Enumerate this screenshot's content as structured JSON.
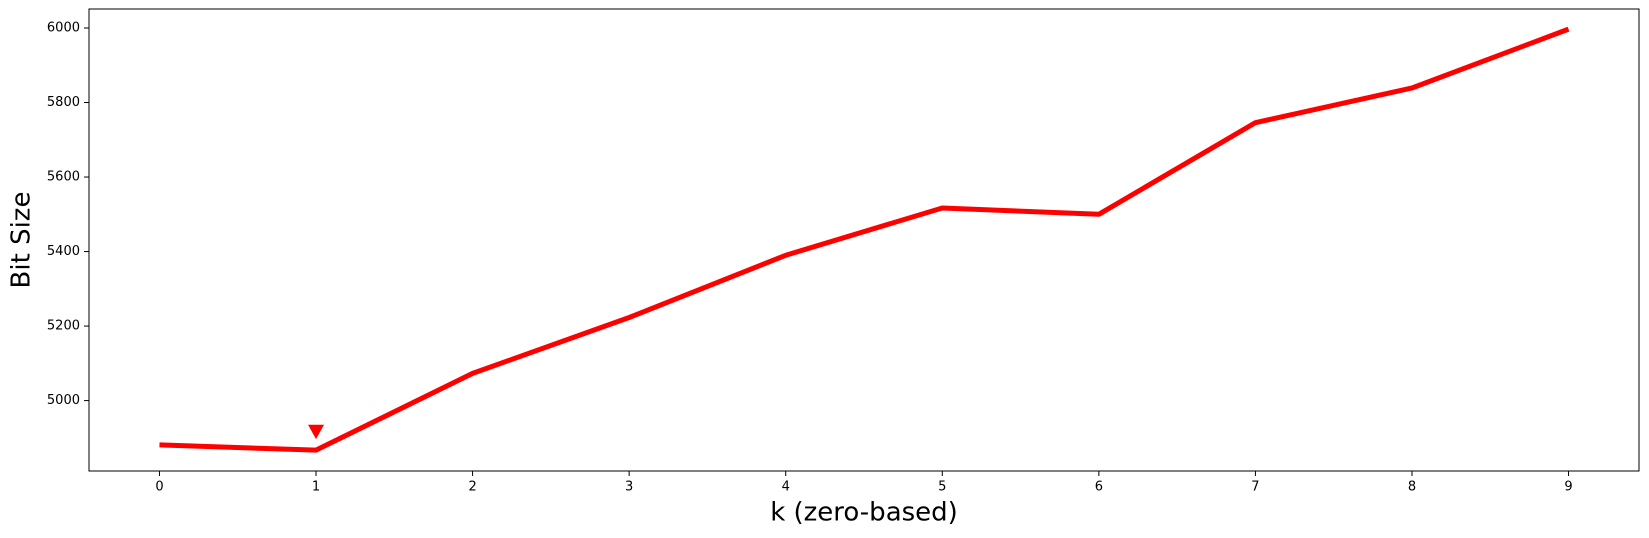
{
  "chart_data": {
    "type": "line",
    "x_label": "k (zero-based)",
    "y_label": "Bit Size",
    "x": [
      0,
      1,
      2,
      3,
      4,
      5,
      6,
      7,
      8,
      9
    ],
    "series": [
      {
        "color": "#ff0000",
        "values": [
          4881,
          4867,
          5073,
          5223,
          5390,
          5517,
          5500,
          5746,
          5839,
          5997
        ]
      }
    ],
    "marker": {
      "x": 1,
      "y": 4918,
      "color": "#ff0000",
      "shape": "triangle-down"
    },
    "xlim": [
      -0.45,
      9.45
    ],
    "ylim": [
      4811,
      6051
    ],
    "xticks": [
      0,
      1,
      2,
      3,
      4,
      5,
      6,
      7,
      8,
      9
    ],
    "yticks": [
      5000,
      5200,
      5400,
      5600,
      5800,
      6000
    ]
  }
}
